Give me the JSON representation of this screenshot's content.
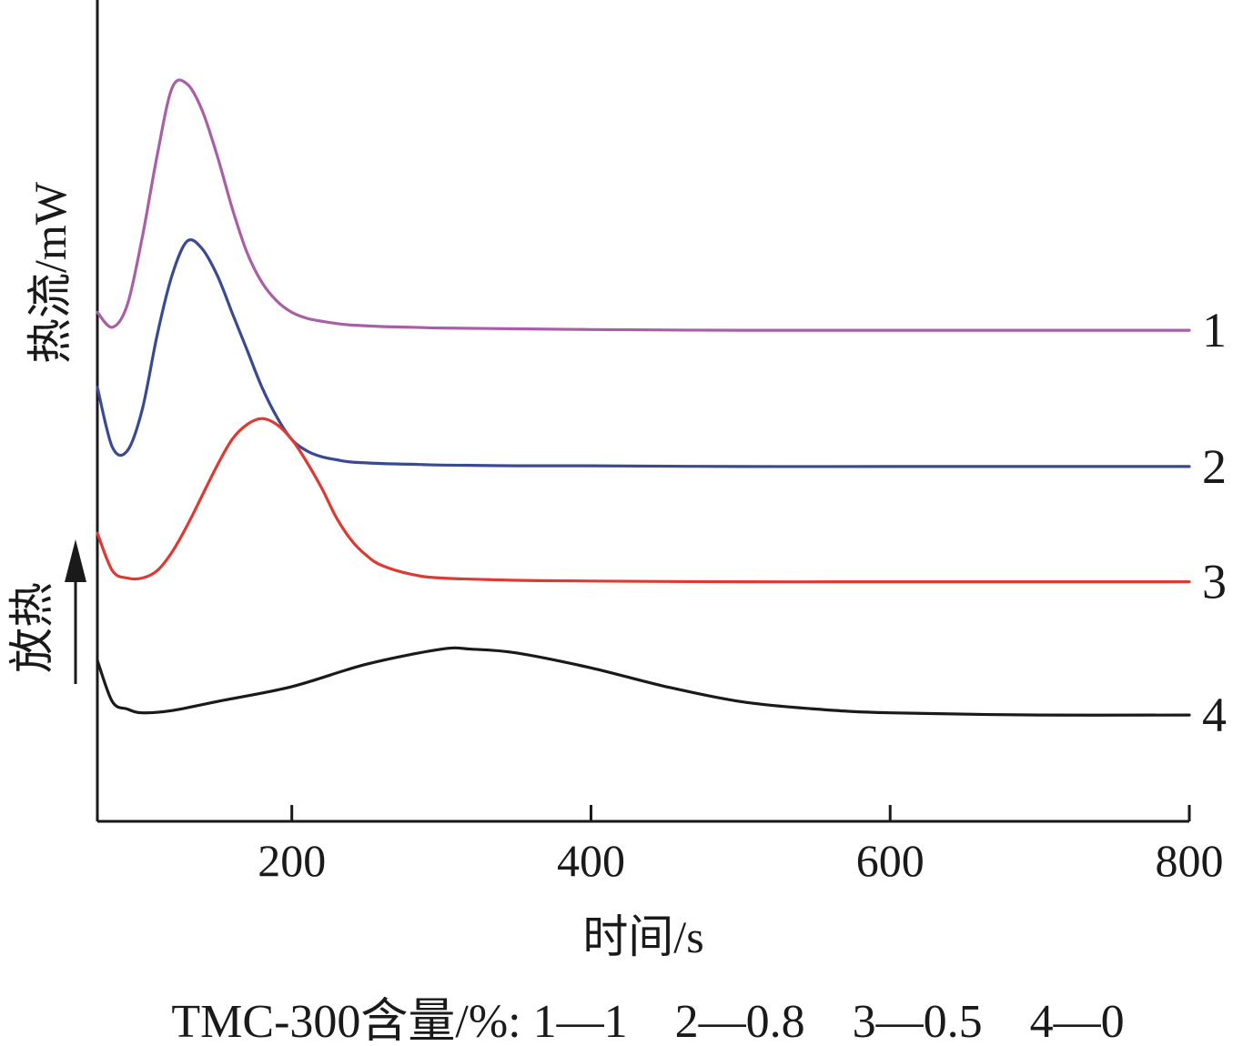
{
  "chart_data": {
    "type": "line",
    "xlabel": "时间/s",
    "ylabel": "热流/mW",
    "y_direction_label": "放热",
    "x_ticks": [
      200,
      400,
      600,
      800
    ],
    "xlim": [
      70,
      800
    ],
    "ylim": [
      0,
      10
    ],
    "grid": false,
    "y_ticks_shown": false,
    "caption": "TMC-300含量/%: 1—1　2—0.8　3—0.5　4—0",
    "series": [
      {
        "name": "1",
        "color": "#a95ea8",
        "x": [
          70,
          80,
          90,
          100,
          110,
          120,
          130,
          140,
          150,
          160,
          170,
          180,
          190,
          200,
          210,
          220,
          230,
          240,
          260,
          280,
          300,
          350,
          400,
          500,
          600,
          700,
          800
        ],
        "y": [
          6.8,
          6.6,
          6.9,
          7.8,
          8.9,
          9.8,
          9.85,
          9.5,
          8.9,
          8.2,
          7.6,
          7.2,
          6.95,
          6.8,
          6.72,
          6.68,
          6.65,
          6.63,
          6.61,
          6.6,
          6.59,
          6.58,
          6.57,
          6.56,
          6.56,
          6.56,
          6.56
        ]
      },
      {
        "name": "2",
        "color": "#3a4a90",
        "x": [
          70,
          80,
          90,
          100,
          110,
          120,
          130,
          140,
          150,
          160,
          170,
          180,
          190,
          200,
          210,
          220,
          230,
          240,
          260,
          280,
          300,
          350,
          400,
          500,
          600,
          700,
          800
        ],
        "y": [
          5.8,
          5.0,
          4.95,
          5.5,
          6.5,
          7.3,
          7.75,
          7.65,
          7.3,
          6.8,
          6.3,
          5.8,
          5.4,
          5.1,
          4.95,
          4.87,
          4.83,
          4.8,
          4.78,
          4.77,
          4.76,
          4.75,
          4.75,
          4.74,
          4.74,
          4.74,
          4.74
        ]
      },
      {
        "name": "3",
        "color": "#dc3a32",
        "x": [
          70,
          80,
          90,
          100,
          110,
          120,
          130,
          140,
          150,
          160,
          170,
          180,
          190,
          200,
          210,
          220,
          230,
          240,
          250,
          260,
          280,
          300,
          350,
          400,
          500,
          600,
          700,
          800
        ],
        "y": [
          3.85,
          3.35,
          3.25,
          3.25,
          3.35,
          3.6,
          3.95,
          4.35,
          4.75,
          5.1,
          5.3,
          5.38,
          5.3,
          5.1,
          4.8,
          4.45,
          4.05,
          3.75,
          3.55,
          3.42,
          3.3,
          3.25,
          3.22,
          3.21,
          3.2,
          3.2,
          3.2,
          3.2
        ]
      },
      {
        "name": "4",
        "color": "#1a1a1a",
        "x": [
          70,
          80,
          90,
          100,
          120,
          150,
          200,
          250,
          300,
          320,
          350,
          400,
          450,
          500,
          550,
          600,
          700,
          800
        ],
        "y": [
          2.15,
          1.6,
          1.5,
          1.45,
          1.48,
          1.6,
          1.8,
          2.1,
          2.3,
          2.3,
          2.25,
          2.05,
          1.8,
          1.6,
          1.5,
          1.45,
          1.42,
          1.42
        ]
      }
    ]
  }
}
